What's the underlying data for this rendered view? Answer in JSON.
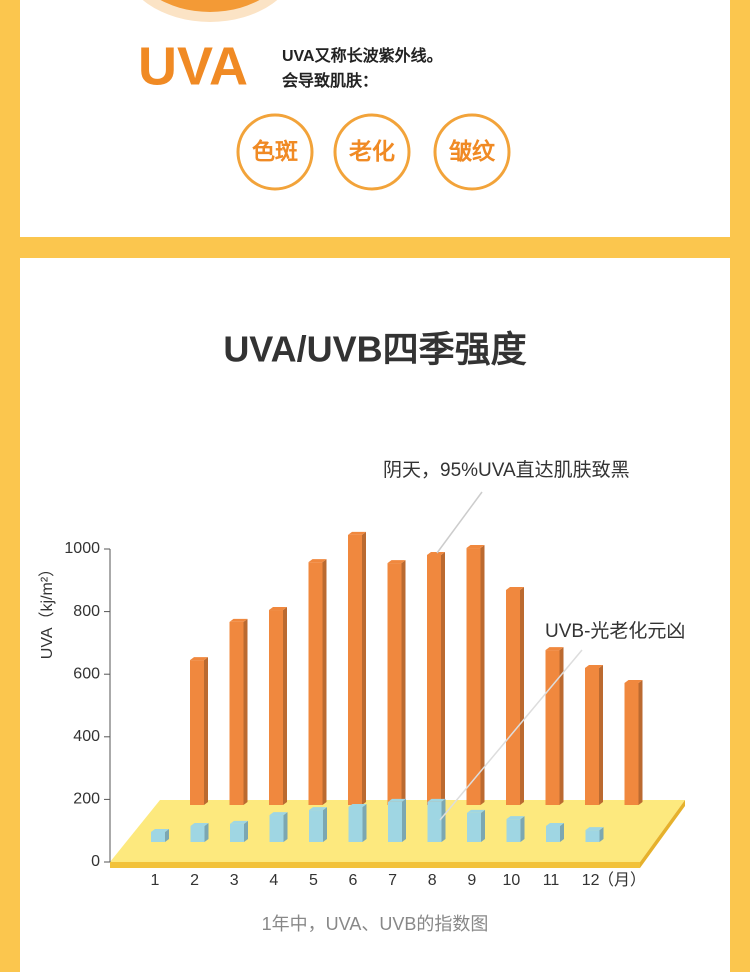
{
  "header": {
    "heading": "UVA",
    "lines": [
      "UVA又称长波紫外线。",
      "会导致肌肤："
    ],
    "effects": [
      "色斑",
      "老化",
      "皱纹"
    ]
  },
  "chart_data": {
    "type": "bar3d",
    "title": "UVA/UVB四季强度",
    "ylabel": "UVA（kj/m²）",
    "xlabel": "（月）",
    "categories": [
      "1",
      "2",
      "3",
      "4",
      "5",
      "6",
      "7",
      "8",
      "9",
      "10",
      "11",
      "12"
    ],
    "series": [
      {
        "color": "#f0883e",
        "values": [
          645,
          767,
          805,
          958,
          1045,
          955,
          981,
          1003,
          869,
          677,
          620,
          572
        ]
      },
      {
        "color": "#9fd6e3",
        "values": [
          32,
          51,
          58,
          86,
          102,
          112,
          128,
          128,
          93,
          73,
          51,
          38
        ]
      }
    ],
    "ylim": [
      0,
      1000
    ],
    "yticks": [
      0,
      200,
      400,
      600,
      800,
      1000
    ],
    "annotations": [
      "阴天，95%UVA直达肌肤致黑",
      "UVB-光老化元凶"
    ],
    "caption": "1年中，UVA、UVB的指数图"
  }
}
